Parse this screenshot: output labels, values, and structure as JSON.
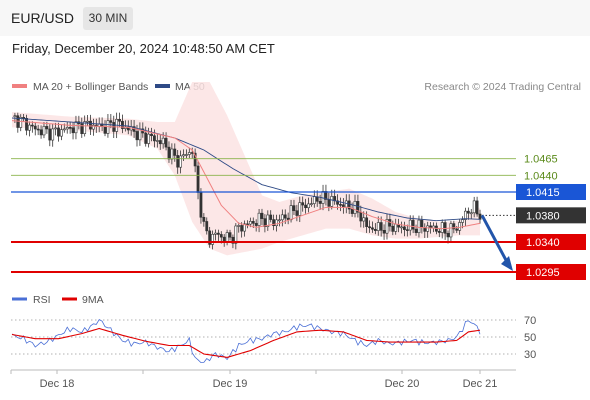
{
  "header": {
    "symbol": "EUR/USD",
    "timeframe": "30 MIN",
    "datetime": "Friday, December 20, 2024 10:48:50 AM CET"
  },
  "legend": {
    "ma20_label": "MA 20 + Bollinger Bands",
    "ma50_label": "MA 50",
    "credit": "Research © 2024 Trading Central"
  },
  "rsi_legend": {
    "rsi_label": "RSI",
    "ma9_label": "9MA"
  },
  "colors": {
    "ma20": "#f08080",
    "ma50": "#2e4a86",
    "bollinger_fill": "#fbe3e3",
    "rsi": "#4a6fd6",
    "rsi_ma": "#e00000",
    "resistance": "#8ab34a",
    "pivot": "#1a56d6",
    "support": "#e00000",
    "last_price": "#333333",
    "arrow": "#2255aa"
  },
  "chart_data": [
    {
      "type": "candlestick",
      "title": "EUR/USD 30 MIN",
      "x_ticks": [
        "Dec 18",
        "Dec 19",
        "Dec 20",
        "Dec 21"
      ],
      "ylim": [
        1.026,
        1.07
      ],
      "levels": [
        {
          "label": "1.0465",
          "value": 1.0465,
          "kind": "resistance"
        },
        {
          "label": "1.0440",
          "value": 1.044,
          "kind": "resistance"
        },
        {
          "label": "1.0415",
          "value": 1.0415,
          "kind": "pivot"
        },
        {
          "label": "1.0380",
          "value": 1.038,
          "kind": "last"
        },
        {
          "label": "1.0340",
          "value": 1.034,
          "kind": "support"
        },
        {
          "label": "1.0295",
          "value": 1.0295,
          "kind": "support"
        }
      ],
      "price_path": [
        [
          0,
          1.0528
        ],
        [
          4,
          1.0519
        ],
        [
          8,
          1.0509
        ],
        [
          14,
          1.0504
        ],
        [
          20,
          1.0511
        ],
        [
          26,
          1.0516
        ],
        [
          32,
          1.0512
        ],
        [
          36,
          1.0519
        ],
        [
          40,
          1.051
        ],
        [
          44,
          1.0501
        ],
        [
          48,
          1.0496
        ],
        [
          52,
          1.0489
        ],
        [
          54,
          1.0475
        ],
        [
          57,
          1.0462
        ],
        [
          60,
          1.0472
        ],
        [
          62,
          1.0478
        ],
        [
          64,
          1.0414
        ],
        [
          66,
          1.0362
        ],
        [
          68,
          1.0345
        ],
        [
          70,
          1.0352
        ],
        [
          74,
          1.0345
        ],
        [
          76,
          1.0349
        ],
        [
          78,
          1.0362
        ],
        [
          82,
          1.0368
        ],
        [
          86,
          1.0375
        ],
        [
          90,
          1.037
        ],
        [
          94,
          1.0378
        ],
        [
          98,
          1.039
        ],
        [
          102,
          1.0397
        ],
        [
          106,
          1.0406
        ],
        [
          110,
          1.0402
        ],
        [
          114,
          1.0395
        ],
        [
          118,
          1.039
        ],
        [
          120,
          1.038
        ],
        [
          122,
          1.0362
        ],
        [
          126,
          1.036
        ],
        [
          130,
          1.0364
        ],
        [
          134,
          1.0361
        ],
        [
          138,
          1.0363
        ],
        [
          142,
          1.0362
        ],
        [
          146,
          1.036
        ],
        [
          150,
          1.0356
        ],
        [
          153,
          1.0362
        ],
        [
          155,
          1.0374
        ],
        [
          157,
          1.0388
        ],
        [
          159,
          1.039
        ],
        [
          161,
          1.0382
        ]
      ],
      "ma50_path": [
        [
          0,
          1.0526
        ],
        [
          20,
          1.052
        ],
        [
          40,
          1.0514
        ],
        [
          56,
          1.0496
        ],
        [
          66,
          1.0478
        ],
        [
          76,
          1.045
        ],
        [
          86,
          1.0426
        ],
        [
          96,
          1.0414
        ],
        [
          106,
          1.0407
        ],
        [
          116,
          1.0397
        ],
        [
          126,
          1.0385
        ],
        [
          136,
          1.0376
        ],
        [
          146,
          1.0372
        ],
        [
          156,
          1.0375
        ],
        [
          161,
          1.0374
        ]
      ],
      "ma20_path": [
        [
          0,
          1.0522
        ],
        [
          20,
          1.0515
        ],
        [
          40,
          1.0512
        ],
        [
          56,
          1.0496
        ],
        [
          62,
          1.0478
        ],
        [
          66,
          1.0445
        ],
        [
          72,
          1.0395
        ],
        [
          78,
          1.0368
        ],
        [
          84,
          1.0362
        ],
        [
          92,
          1.0368
        ],
        [
          100,
          1.038
        ],
        [
          108,
          1.0392
        ],
        [
          116,
          1.0392
        ],
        [
          124,
          1.0378
        ],
        [
          132,
          1.0367
        ],
        [
          140,
          1.0362
        ],
        [
          148,
          1.036
        ],
        [
          154,
          1.0362
        ],
        [
          161,
          1.0368
        ]
      ],
      "bollinger_upper": [
        [
          0,
          1.0535
        ],
        [
          20,
          1.0528
        ],
        [
          40,
          1.0525
        ],
        [
          50,
          1.052
        ],
        [
          56,
          1.052
        ],
        [
          62,
          1.058
        ],
        [
          68,
          1.058
        ],
        [
          74,
          1.053
        ],
        [
          80,
          1.047
        ],
        [
          86,
          1.041
        ],
        [
          92,
          1.04
        ],
        [
          100,
          1.041
        ],
        [
          108,
          1.0415
        ],
        [
          116,
          1.042
        ],
        [
          124,
          1.0405
        ],
        [
          132,
          1.0385
        ],
        [
          140,
          1.0375
        ],
        [
          148,
          1.037
        ],
        [
          154,
          1.0372
        ],
        [
          161,
          1.0392
        ]
      ],
      "bollinger_lower": [
        [
          0,
          1.0512
        ],
        [
          20,
          1.0508
        ],
        [
          40,
          1.05
        ],
        [
          50,
          1.048
        ],
        [
          56,
          1.044
        ],
        [
          62,
          1.037
        ],
        [
          68,
          1.033
        ],
        [
          74,
          1.032
        ],
        [
          80,
          1.0325
        ],
        [
          86,
          1.033
        ],
        [
          92,
          1.034
        ],
        [
          100,
          1.035
        ],
        [
          108,
          1.036
        ],
        [
          116,
          1.036
        ],
        [
          124,
          1.035
        ],
        [
          132,
          1.0345
        ],
        [
          140,
          1.0345
        ],
        [
          148,
          1.0348
        ],
        [
          154,
          1.035
        ],
        [
          161,
          1.035
        ]
      ],
      "forecast": {
        "from": 1.038,
        "to": 1.0295
      }
    },
    {
      "type": "line",
      "title": "RSI",
      "y_ticks": [
        "70",
        "50",
        "30"
      ],
      "ylim": [
        10,
        80
      ],
      "series": [
        {
          "name": "RSI",
          "values": [
            [
              0,
              52
            ],
            [
              4,
              48
            ],
            [
              8,
              40
            ],
            [
              12,
              44
            ],
            [
              16,
              52
            ],
            [
              20,
              60
            ],
            [
              24,
              56
            ],
            [
              28,
              64
            ],
            [
              30,
              70
            ],
            [
              34,
              58
            ],
            [
              38,
              46
            ],
            [
              42,
              42
            ],
            [
              46,
              44
            ],
            [
              50,
              38
            ],
            [
              54,
              33
            ],
            [
              58,
              40
            ],
            [
              61,
              46
            ],
            [
              63,
              24
            ],
            [
              66,
              20
            ],
            [
              70,
              30
            ],
            [
              74,
              25
            ],
            [
              78,
              40
            ],
            [
              82,
              46
            ],
            [
              86,
              48
            ],
            [
              90,
              54
            ],
            [
              94,
              56
            ],
            [
              98,
              62
            ],
            [
              102,
              64
            ],
            [
              106,
              60
            ],
            [
              110,
              56
            ],
            [
              114,
              54
            ],
            [
              118,
              46
            ],
            [
              122,
              40
            ],
            [
              126,
              46
            ],
            [
              130,
              42
            ],
            [
              134,
              44
            ],
            [
              138,
              46
            ],
            [
              142,
              43
            ],
            [
              146,
              44
            ],
            [
              150,
              46
            ],
            [
              153,
              50
            ],
            [
              155,
              60
            ],
            [
              157,
              70
            ],
            [
              159,
              65
            ],
            [
              161,
              57
            ]
          ]
        },
        {
          "name": "9MA",
          "values": [
            [
              0,
              53
            ],
            [
              8,
              48
            ],
            [
              16,
              48
            ],
            [
              24,
              54
            ],
            [
              30,
              60
            ],
            [
              38,
              52
            ],
            [
              46,
              45
            ],
            [
              54,
              40
            ],
            [
              61,
              40
            ],
            [
              66,
              30
            ],
            [
              74,
              26
            ],
            [
              82,
              34
            ],
            [
              90,
              46
            ],
            [
              98,
              56
            ],
            [
              106,
              58
            ],
            [
              114,
              56
            ],
            [
              122,
              46
            ],
            [
              130,
              44
            ],
            [
              138,
              44
            ],
            [
              146,
              44
            ],
            [
              153,
              46
            ],
            [
              157,
              56
            ],
            [
              161,
              58
            ]
          ]
        }
      ]
    }
  ]
}
